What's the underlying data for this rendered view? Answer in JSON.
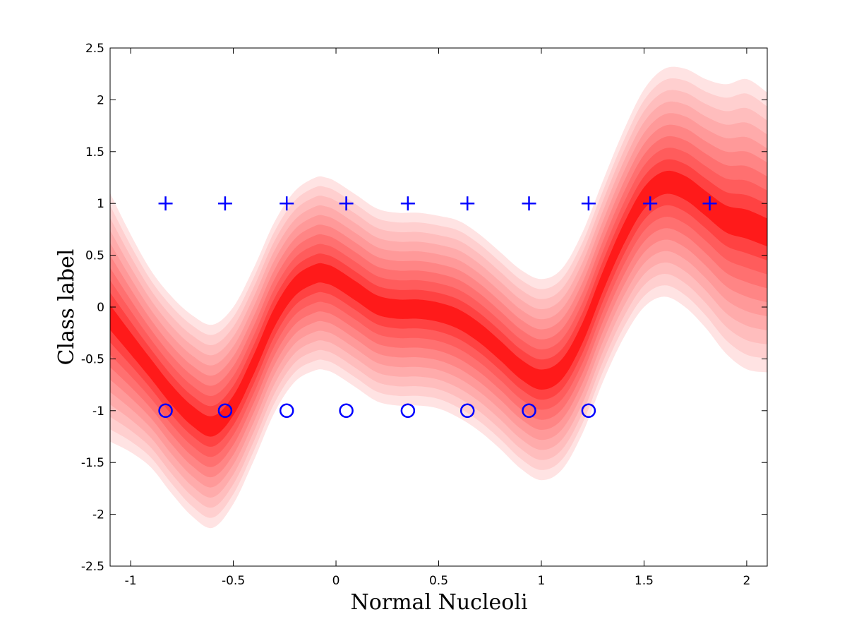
{
  "chart_data": {
    "type": "area",
    "title": "",
    "xlabel": "Normal Nucleoli",
    "ylabel": "Class label",
    "xlim": [
      -1.1,
      2.1
    ],
    "ylim": [
      -2.5,
      2.5
    ],
    "xticks": [
      "-1",
      "-0.5",
      "0",
      "0.5",
      "1",
      "1.5",
      "2"
    ],
    "yticks": [
      "2.5",
      "2",
      "1.5",
      "1",
      "0.5",
      "0",
      "-0.5",
      "-1",
      "-1.5",
      "-2",
      "-2.5"
    ],
    "grid": false,
    "colors": {
      "band": "#ff1a1a",
      "markers": "#0000ff"
    },
    "band": {
      "x": [
        -1.1,
        -1.0,
        -0.9,
        -0.8,
        -0.7,
        -0.6,
        -0.5,
        -0.4,
        -0.3,
        -0.2,
        -0.1,
        -0.05,
        0.0,
        0.1,
        0.2,
        0.3,
        0.4,
        0.5,
        0.6,
        0.7,
        0.8,
        0.9,
        1.0,
        1.1,
        1.2,
        1.3,
        1.4,
        1.5,
        1.6,
        1.7,
        1.8,
        1.9,
        2.0,
        2.1
      ],
      "mean": [
        -0.1,
        -0.35,
        -0.6,
        -0.85,
        -1.05,
        -1.15,
        -0.95,
        -0.55,
        -0.1,
        0.2,
        0.32,
        0.32,
        0.28,
        0.15,
        0.02,
        -0.02,
        -0.02,
        -0.05,
        -0.12,
        -0.25,
        -0.42,
        -0.6,
        -0.7,
        -0.6,
        -0.25,
        0.25,
        0.7,
        1.05,
        1.2,
        1.15,
        1.0,
        0.85,
        0.8,
        0.72
      ],
      "outer_halfwidth": [
        1.2,
        1.05,
        0.95,
        0.95,
        0.97,
        0.98,
        0.95,
        0.93,
        0.92,
        0.92,
        0.93,
        0.93,
        0.93,
        0.93,
        0.93,
        0.93,
        0.93,
        0.93,
        0.95,
        0.95,
        0.95,
        0.96,
        0.97,
        0.97,
        0.97,
        0.97,
        1.0,
        1.05,
        1.1,
        1.15,
        1.2,
        1.3,
        1.4,
        1.35
      ],
      "levels": 10
    },
    "series": [
      {
        "marker": "plus",
        "x": [
          -0.83,
          -0.54,
          -0.24,
          0.05,
          0.35,
          0.64,
          0.94,
          1.23,
          1.53,
          1.82
        ],
        "y": [
          1,
          1,
          1,
          1,
          1,
          1,
          1,
          1,
          1,
          1
        ]
      },
      {
        "marker": "circle",
        "x": [
          -0.83,
          -0.54,
          -0.24,
          0.05,
          0.35,
          0.64,
          0.94,
          1.23
        ],
        "y": [
          -1,
          -1,
          -1,
          -1,
          -1,
          -1,
          -1,
          -1
        ]
      }
    ]
  }
}
